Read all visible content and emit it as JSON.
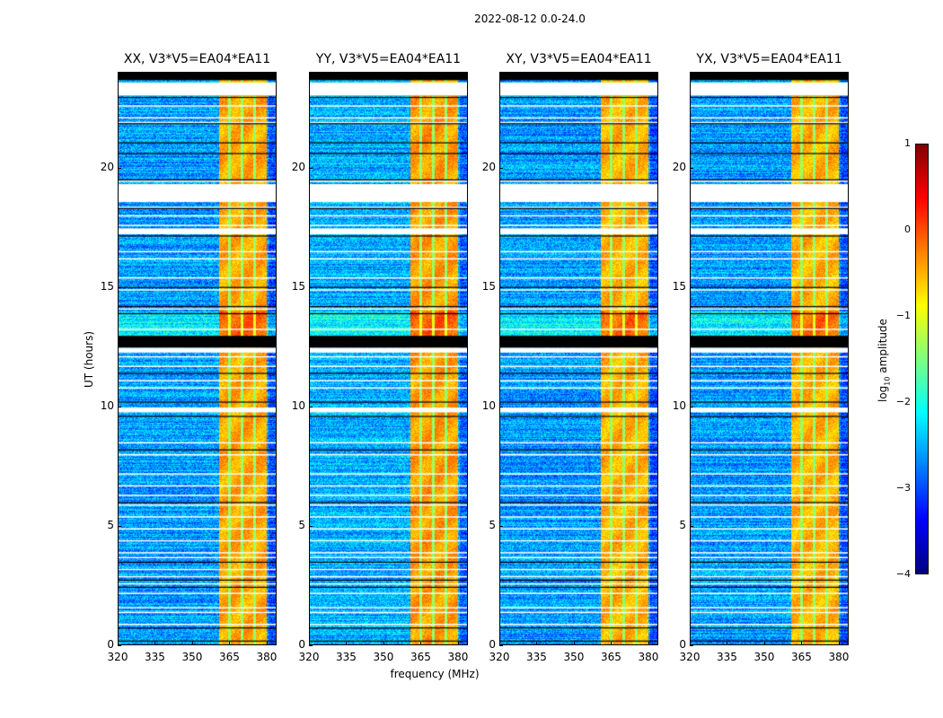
{
  "figure": {
    "suptitle": "2022-08-12 0.0-24.0",
    "xlabel": "frequency (MHz)",
    "ylabel": "UT (hours)",
    "colorbar_label_prefix": "log",
    "colorbar_label_sub": "10",
    "colorbar_label_suffix": " amplitude"
  },
  "chart_data": {
    "type": "heatmap",
    "colormap": "jet",
    "title": "2022-08-12 0.0-24.0",
    "xlabel": "frequency (MHz)",
    "ylabel": "UT (hours)",
    "xlim": [
      320,
      384
    ],
    "ylim": [
      0,
      24
    ],
    "xticks": [
      320,
      335,
      350,
      365,
      380
    ],
    "xtick_labels": [
      "320",
      "335",
      "350",
      "365",
      "380"
    ],
    "yticks": [
      0,
      5,
      10,
      15,
      20
    ],
    "ytick_labels": [
      "0",
      "5",
      "10",
      "15",
      "20"
    ],
    "colorbar": {
      "label": "log10 amplitude",
      "range": [
        -4,
        1
      ],
      "ticks": [
        1,
        0,
        -1,
        -2,
        -3,
        -4
      ],
      "tick_labels": [
        "1",
        "0",
        "−1",
        "−2",
        "−3",
        "−4"
      ]
    },
    "panels": [
      {
        "name": "XX",
        "title": "XX, V3*V5=EA04*EA11",
        "background_log_amp": -2.6,
        "band_log_amp": -0.45
      },
      {
        "name": "YY",
        "title": "YY, V3*V5=EA04*EA11",
        "background_log_amp": -2.5,
        "band_log_amp": -0.4
      },
      {
        "name": "XY",
        "title": "XY, V3*V5=EA04*EA11",
        "background_log_amp": -2.6,
        "band_log_amp": -0.5
      },
      {
        "name": "YX",
        "title": "YX, V3*V5=EA04*EA11",
        "background_log_amp": -2.6,
        "band_log_amp": -0.5
      }
    ],
    "rfi_band_mhz": [
      360.5,
      380.0
    ],
    "band_separators_mhz": [
      365,
      370,
      375
    ],
    "strong_rfi_interval_hours": [
      12.6,
      14.0
    ],
    "flagged_blank_intervals_hours": [
      [
        23.0,
        23.55
      ],
      [
        18.55,
        19.3
      ],
      [
        17.2,
        17.45
      ],
      [
        9.75,
        9.95
      ],
      [
        12.25,
        12.45
      ]
    ],
    "flagged_black_intervals_hours": [
      [
        23.65,
        24.0
      ],
      [
        23.0,
        23.4
      ],
      [
        12.45,
        12.95
      ]
    ],
    "flagged_line_hours_white": [
      22.6,
      22.1,
      21.9,
      19.45,
      18.35,
      18.0,
      17.6,
      16.5,
      16.2,
      15.4,
      14.9,
      14.1,
      13.25,
      12.1,
      11.7,
      11.1,
      10.8,
      8.5,
      8.0,
      7.2,
      6.7,
      6.3,
      5.9,
      5.4,
      4.9,
      4.4,
      3.9,
      3.7,
      3.2,
      2.9,
      2.6,
      2.2,
      1.6,
      1.4,
      0.9
    ],
    "flagged_line_hours_black": [
      22.95,
      21.85,
      21.05,
      20.6,
      19.5,
      18.3,
      17.15,
      15.0,
      14.2,
      13.9,
      11.4,
      10.2,
      9.6,
      8.2,
      6.0,
      3.5,
      2.75,
      2.45,
      0.75,
      0.2
    ]
  }
}
